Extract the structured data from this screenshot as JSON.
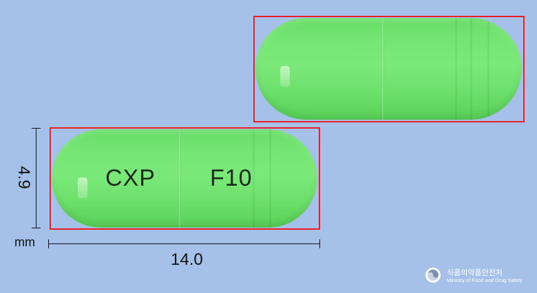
{
  "pill": {
    "imprint_left": "CXP",
    "imprint_right": "F10",
    "color": "#74e572",
    "box_color": "#ee1c24"
  },
  "dimensions": {
    "height": "4.9",
    "width": "14.0",
    "unit": "mm"
  },
  "logo": {
    "icon": "mfds-emblem-icon",
    "korean": "식품의약품안전처",
    "english": "Ministry of Food and Drug Safety"
  }
}
